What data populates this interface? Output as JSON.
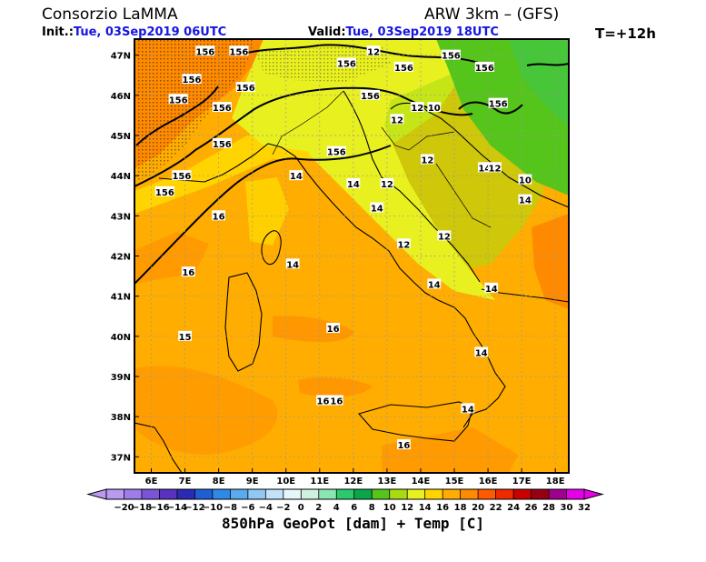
{
  "header": {
    "org": "Consorzio LaMMA",
    "model": "ARW 3km – (GFS)",
    "init_label": "Init.:",
    "init_value": "Tue, 03Sep2019 06UTC",
    "valid_label": "Valid:",
    "valid_value": "Tue, 03Sep2019 18UTC",
    "lead": "T=+12h"
  },
  "map": {
    "lat_labels": [
      "47N",
      "46N",
      "45N",
      "44N",
      "43N",
      "42N",
      "41N",
      "40N",
      "39N",
      "38N",
      "37N"
    ],
    "lon_labels": [
      "6E",
      "7E",
      "8E",
      "9E",
      "10E",
      "11E",
      "12E",
      "13E",
      "14E",
      "15E",
      "16E",
      "17E",
      "18E"
    ],
    "lat_range": [
      36.6,
      47.4
    ],
    "lon_range": [
      5.5,
      18.4
    ],
    "geopot_labels": [
      {
        "text": "156",
        "lon": 7.6,
        "lat": 47.1
      },
      {
        "text": "156",
        "lon": 8.6,
        "lat": 47.1
      },
      {
        "text": "156",
        "lon": 7.2,
        "lat": 46.4
      },
      {
        "text": "156",
        "lon": 8.8,
        "lat": 46.2
      },
      {
        "text": "156",
        "lon": 6.8,
        "lat": 45.9
      },
      {
        "text": "156",
        "lon": 8.1,
        "lat": 45.7
      },
      {
        "text": "156",
        "lon": 8.1,
        "lat": 44.8
      },
      {
        "text": "156",
        "lon": 6.9,
        "lat": 44.0
      },
      {
        "text": "156",
        "lon": 6.4,
        "lat": 43.6
      },
      {
        "text": "156",
        "lon": 11.5,
        "lat": 44.6
      },
      {
        "text": "156",
        "lon": 11.8,
        "lat": 46.8
      },
      {
        "text": "156",
        "lon": 12.5,
        "lat": 46.0
      },
      {
        "text": "156",
        "lon": 13.5,
        "lat": 46.7
      },
      {
        "text": "156",
        "lon": 14.9,
        "lat": 47.0
      },
      {
        "text": "156",
        "lon": 15.9,
        "lat": 46.7
      },
      {
        "text": "156",
        "lon": 16.3,
        "lat": 45.8
      }
    ],
    "temp_labels": [
      {
        "text": "12",
        "lon": 12.6,
        "lat": 47.1
      },
      {
        "text": "12",
        "lon": 13.3,
        "lat": 45.4
      },
      {
        "text": "12",
        "lon": 13.9,
        "lat": 45.7
      },
      {
        "text": "10",
        "lon": 14.4,
        "lat": 45.7
      },
      {
        "text": "12",
        "lon": 14.2,
        "lat": 44.4
      },
      {
        "text": "14",
        "lon": 15.9,
        "lat": 44.2
      },
      {
        "text": "12",
        "lon": 16.2,
        "lat": 44.2
      },
      {
        "text": "10",
        "lon": 17.1,
        "lat": 43.9
      },
      {
        "text": "14",
        "lon": 17.1,
        "lat": 43.4
      },
      {
        "text": "12",
        "lon": 13.0,
        "lat": 43.8
      },
      {
        "text": "14",
        "lon": 10.3,
        "lat": 44.0
      },
      {
        "text": "14",
        "lon": 12.0,
        "lat": 43.8
      },
      {
        "text": "14",
        "lon": 12.7,
        "lat": 43.2
      },
      {
        "text": "12",
        "lon": 13.5,
        "lat": 42.3
      },
      {
        "text": "12",
        "lon": 14.7,
        "lat": 42.5
      },
      {
        "text": "16",
        "lon": 8.0,
        "lat": 43.0
      },
      {
        "text": "16",
        "lon": 7.1,
        "lat": 41.6
      },
      {
        "text": "14",
        "lon": 10.2,
        "lat": 41.8
      },
      {
        "text": "14",
        "lon": 14.4,
        "lat": 41.3
      },
      {
        "text": "14",
        "lon": 16.1,
        "lat": 41.2
      },
      {
        "text": "16",
        "lon": 11.4,
        "lat": 40.2
      },
      {
        "text": "15",
        "lon": 7.0,
        "lat": 40.0
      },
      {
        "text": "14",
        "lon": 15.8,
        "lat": 39.6
      },
      {
        "text": "16",
        "lon": 11.1,
        "lat": 38.4
      },
      {
        "text": "16",
        "lon": 11.5,
        "lat": 38.4
      },
      {
        "text": "14",
        "lon": 15.4,
        "lat": 38.2
      },
      {
        "text": "16",
        "lon": 13.5,
        "lat": 37.3
      }
    ]
  },
  "colorbar": {
    "ticks": [
      "−20",
      "−18",
      "−16",
      "−14",
      "−12",
      "−10",
      "−8",
      "−6",
      "−4",
      "−2",
      "0",
      "2",
      "4",
      "6",
      "8",
      "10",
      "12",
      "14",
      "16",
      "18",
      "20",
      "22",
      "24",
      "26",
      "28",
      "30",
      "32"
    ],
    "colors": [
      "#b99af0",
      "#9d7ceb",
      "#7a55d8",
      "#5a32c2",
      "#2a2ab5",
      "#1e5fd6",
      "#2e8ae6",
      "#5aaaf0",
      "#8fc8f5",
      "#c2e2f8",
      "#e6f6fb",
      "#cff2e0",
      "#8ae6b0",
      "#2cc86e",
      "#0aa74a",
      "#55c51c",
      "#a8dc10",
      "#e8f020",
      "#ffd400",
      "#ffad00",
      "#ff8a00",
      "#ff5a00",
      "#ee2a00",
      "#c80000",
      "#960012",
      "#a0008e",
      "#e600e6"
    ]
  },
  "footer": {
    "title": "850hPa GeoPot [dam] + Temp [C]"
  }
}
